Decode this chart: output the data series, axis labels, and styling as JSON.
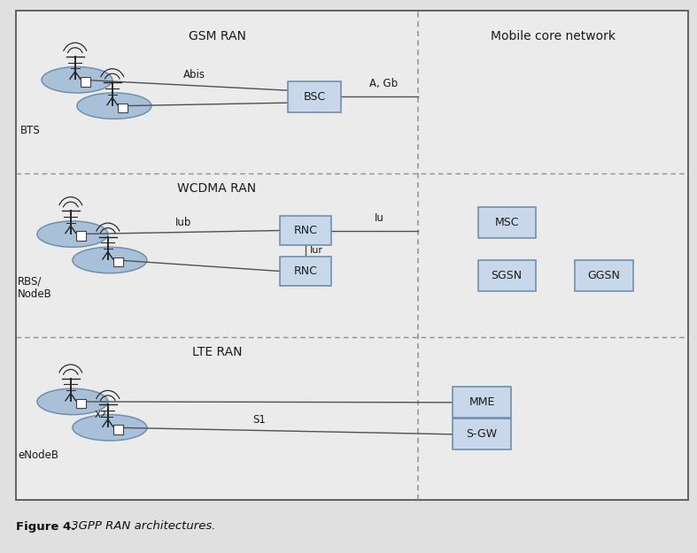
{
  "fig_width": 7.87,
  "fig_height": 6.25,
  "dpi": 100,
  "background_color": "#e0e0e0",
  "inner_bg_color": "#ebebeb",
  "box_facecolor": "#c8d8ea",
  "box_edgecolor": "#7090b0",
  "ellipse_facecolor": "#a8c0d8",
  "ellipse_edgecolor": "#7090b0",
  "line_color": "#505050",
  "dash_color": "#909090",
  "title_bold": "Figure 4.",
  "title_italic": " 3GPP RAN architectures.",
  "sections": [
    "GSM RAN",
    "WCDMA RAN",
    "LTE RAN"
  ],
  "core_label": "Mobile core network",
  "gsm_bts": "BTS",
  "gsm_bsc": "BSC",
  "gsm_abis": "Abis",
  "gsm_agb": "A, Gb",
  "wcdma_rbs": "RBS/\nNodeB",
  "wcdma_rnc": "RNC",
  "wcdma_iub": "Iub",
  "wcdma_iur": "Iur",
  "wcdma_iu": "Iu",
  "wcdma_msc": "MSC",
  "wcdma_sgsn": "SGSN",
  "wcdma_ggsn": "GGSN",
  "lte_enodeb": "eNodeB",
  "lte_x2": "X2",
  "lte_s1": "S1",
  "lte_mme": "MME",
  "lte_sgw": "S-GW"
}
